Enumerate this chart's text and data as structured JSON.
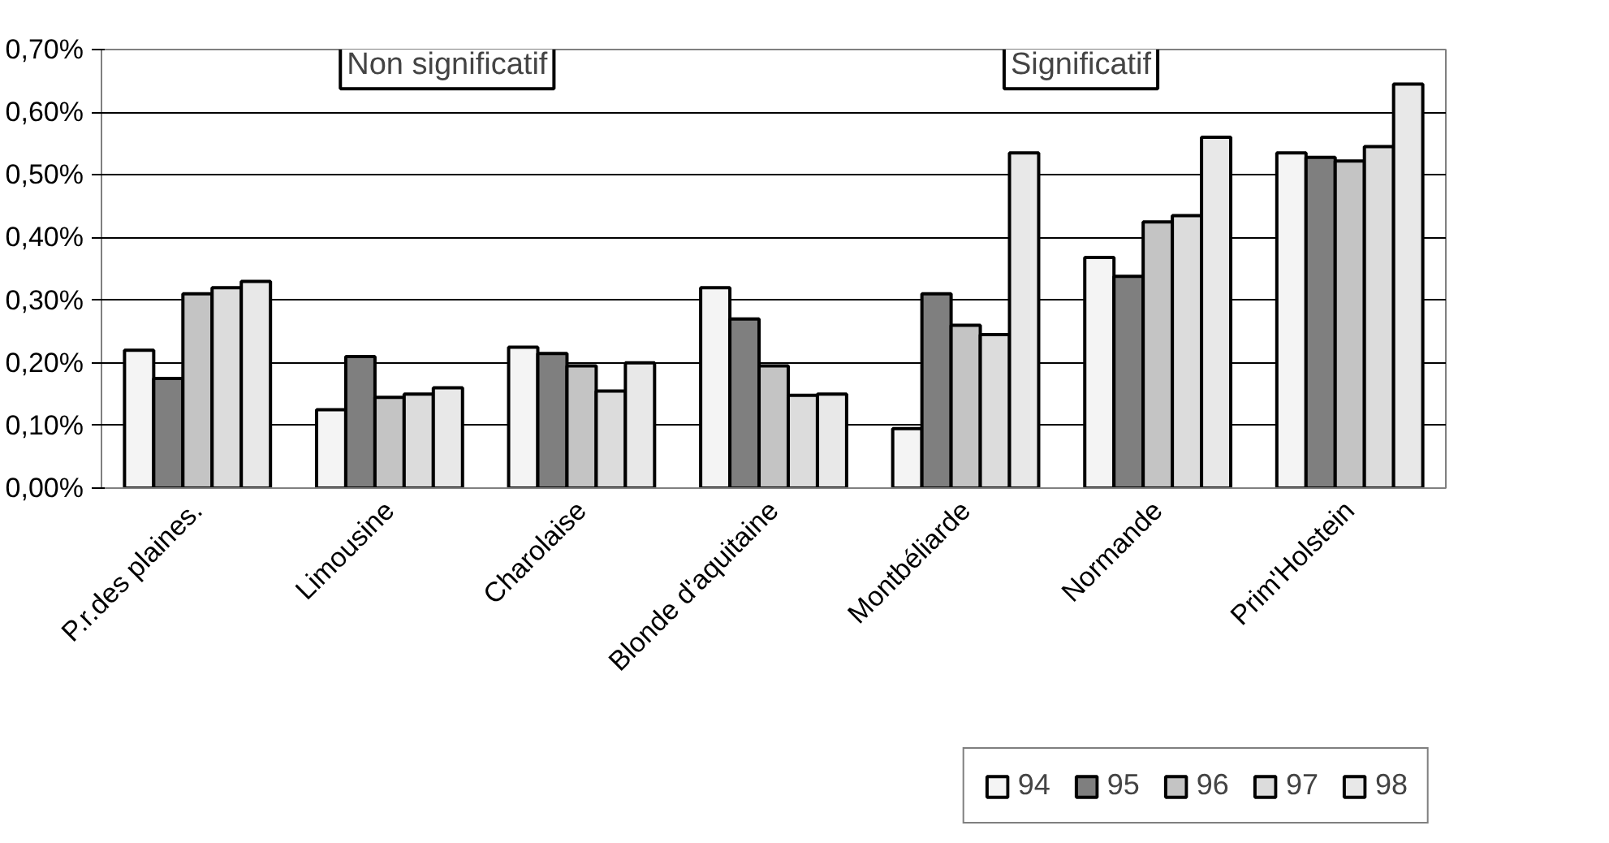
{
  "chart_data": {
    "type": "bar",
    "categories": [
      "P.r.des plaines.",
      "Limousine",
      "Charolaise",
      "Blonde d'aquitaine",
      "Montbéliarde",
      "Normande",
      "Prim'Holstein"
    ],
    "series": [
      {
        "name": "94",
        "color": "#f4f4f4",
        "values": [
          0.22,
          0.125,
          0.225,
          0.32,
          0.095,
          0.368,
          0.535
        ]
      },
      {
        "name": "95",
        "color": "#7f7f7f",
        "values": [
          0.175,
          0.21,
          0.215,
          0.27,
          0.31,
          0.338,
          0.528
        ]
      },
      {
        "name": "96",
        "color": "#c4c4c4",
        "values": [
          0.31,
          0.145,
          0.195,
          0.195,
          0.26,
          0.425,
          0.522
        ]
      },
      {
        "name": "97",
        "color": "#dcdcdc",
        "values": [
          0.32,
          0.15,
          0.155,
          0.148,
          0.245,
          0.435,
          0.545
        ]
      },
      {
        "name": "98",
        "color": "#e8e8e8",
        "values": [
          0.33,
          0.16,
          0.2,
          0.15,
          0.535,
          0.56,
          0.645
        ]
      }
    ],
    "ylim": [
      0,
      0.7
    ],
    "yticks": [
      {
        "value": 0,
        "label": "0,00%"
      },
      {
        "value": 0.1,
        "label": "0,10%"
      },
      {
        "value": 0.2,
        "label": "0,20%"
      },
      {
        "value": 0.3,
        "label": "0,30%"
      },
      {
        "value": 0.4,
        "label": "0,40%"
      },
      {
        "value": 0.5,
        "label": "0,50%"
      },
      {
        "value": 0.6,
        "label": "0,60%"
      },
      {
        "value": 0.7,
        "label": "0,70%"
      }
    ],
    "grid": "y",
    "legend": "bottom right",
    "annotations": [
      "Non significatif",
      "Significatif"
    ]
  }
}
